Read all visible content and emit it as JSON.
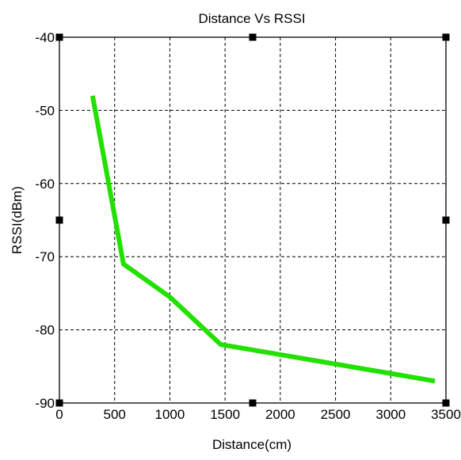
{
  "chart_data": {
    "type": "line",
    "title": "Distance Vs RSSI",
    "xlabel": "Distance(cm)",
    "ylabel": "RSSI(dBm)",
    "xlim": [
      0,
      3500
    ],
    "ylim": [
      -90,
      -40
    ],
    "xticks": [
      0,
      500,
      1000,
      1500,
      2000,
      2500,
      3000,
      3500
    ],
    "yticks": [
      -40,
      -50,
      -60,
      -70,
      -80,
      -90
    ],
    "grid": true,
    "series": [
      {
        "color": "#22e000",
        "x": [
          300,
          580,
          1000,
          1460,
          3400
        ],
        "y": [
          -48,
          -71,
          -75.5,
          -82,
          -87
        ]
      }
    ]
  }
}
